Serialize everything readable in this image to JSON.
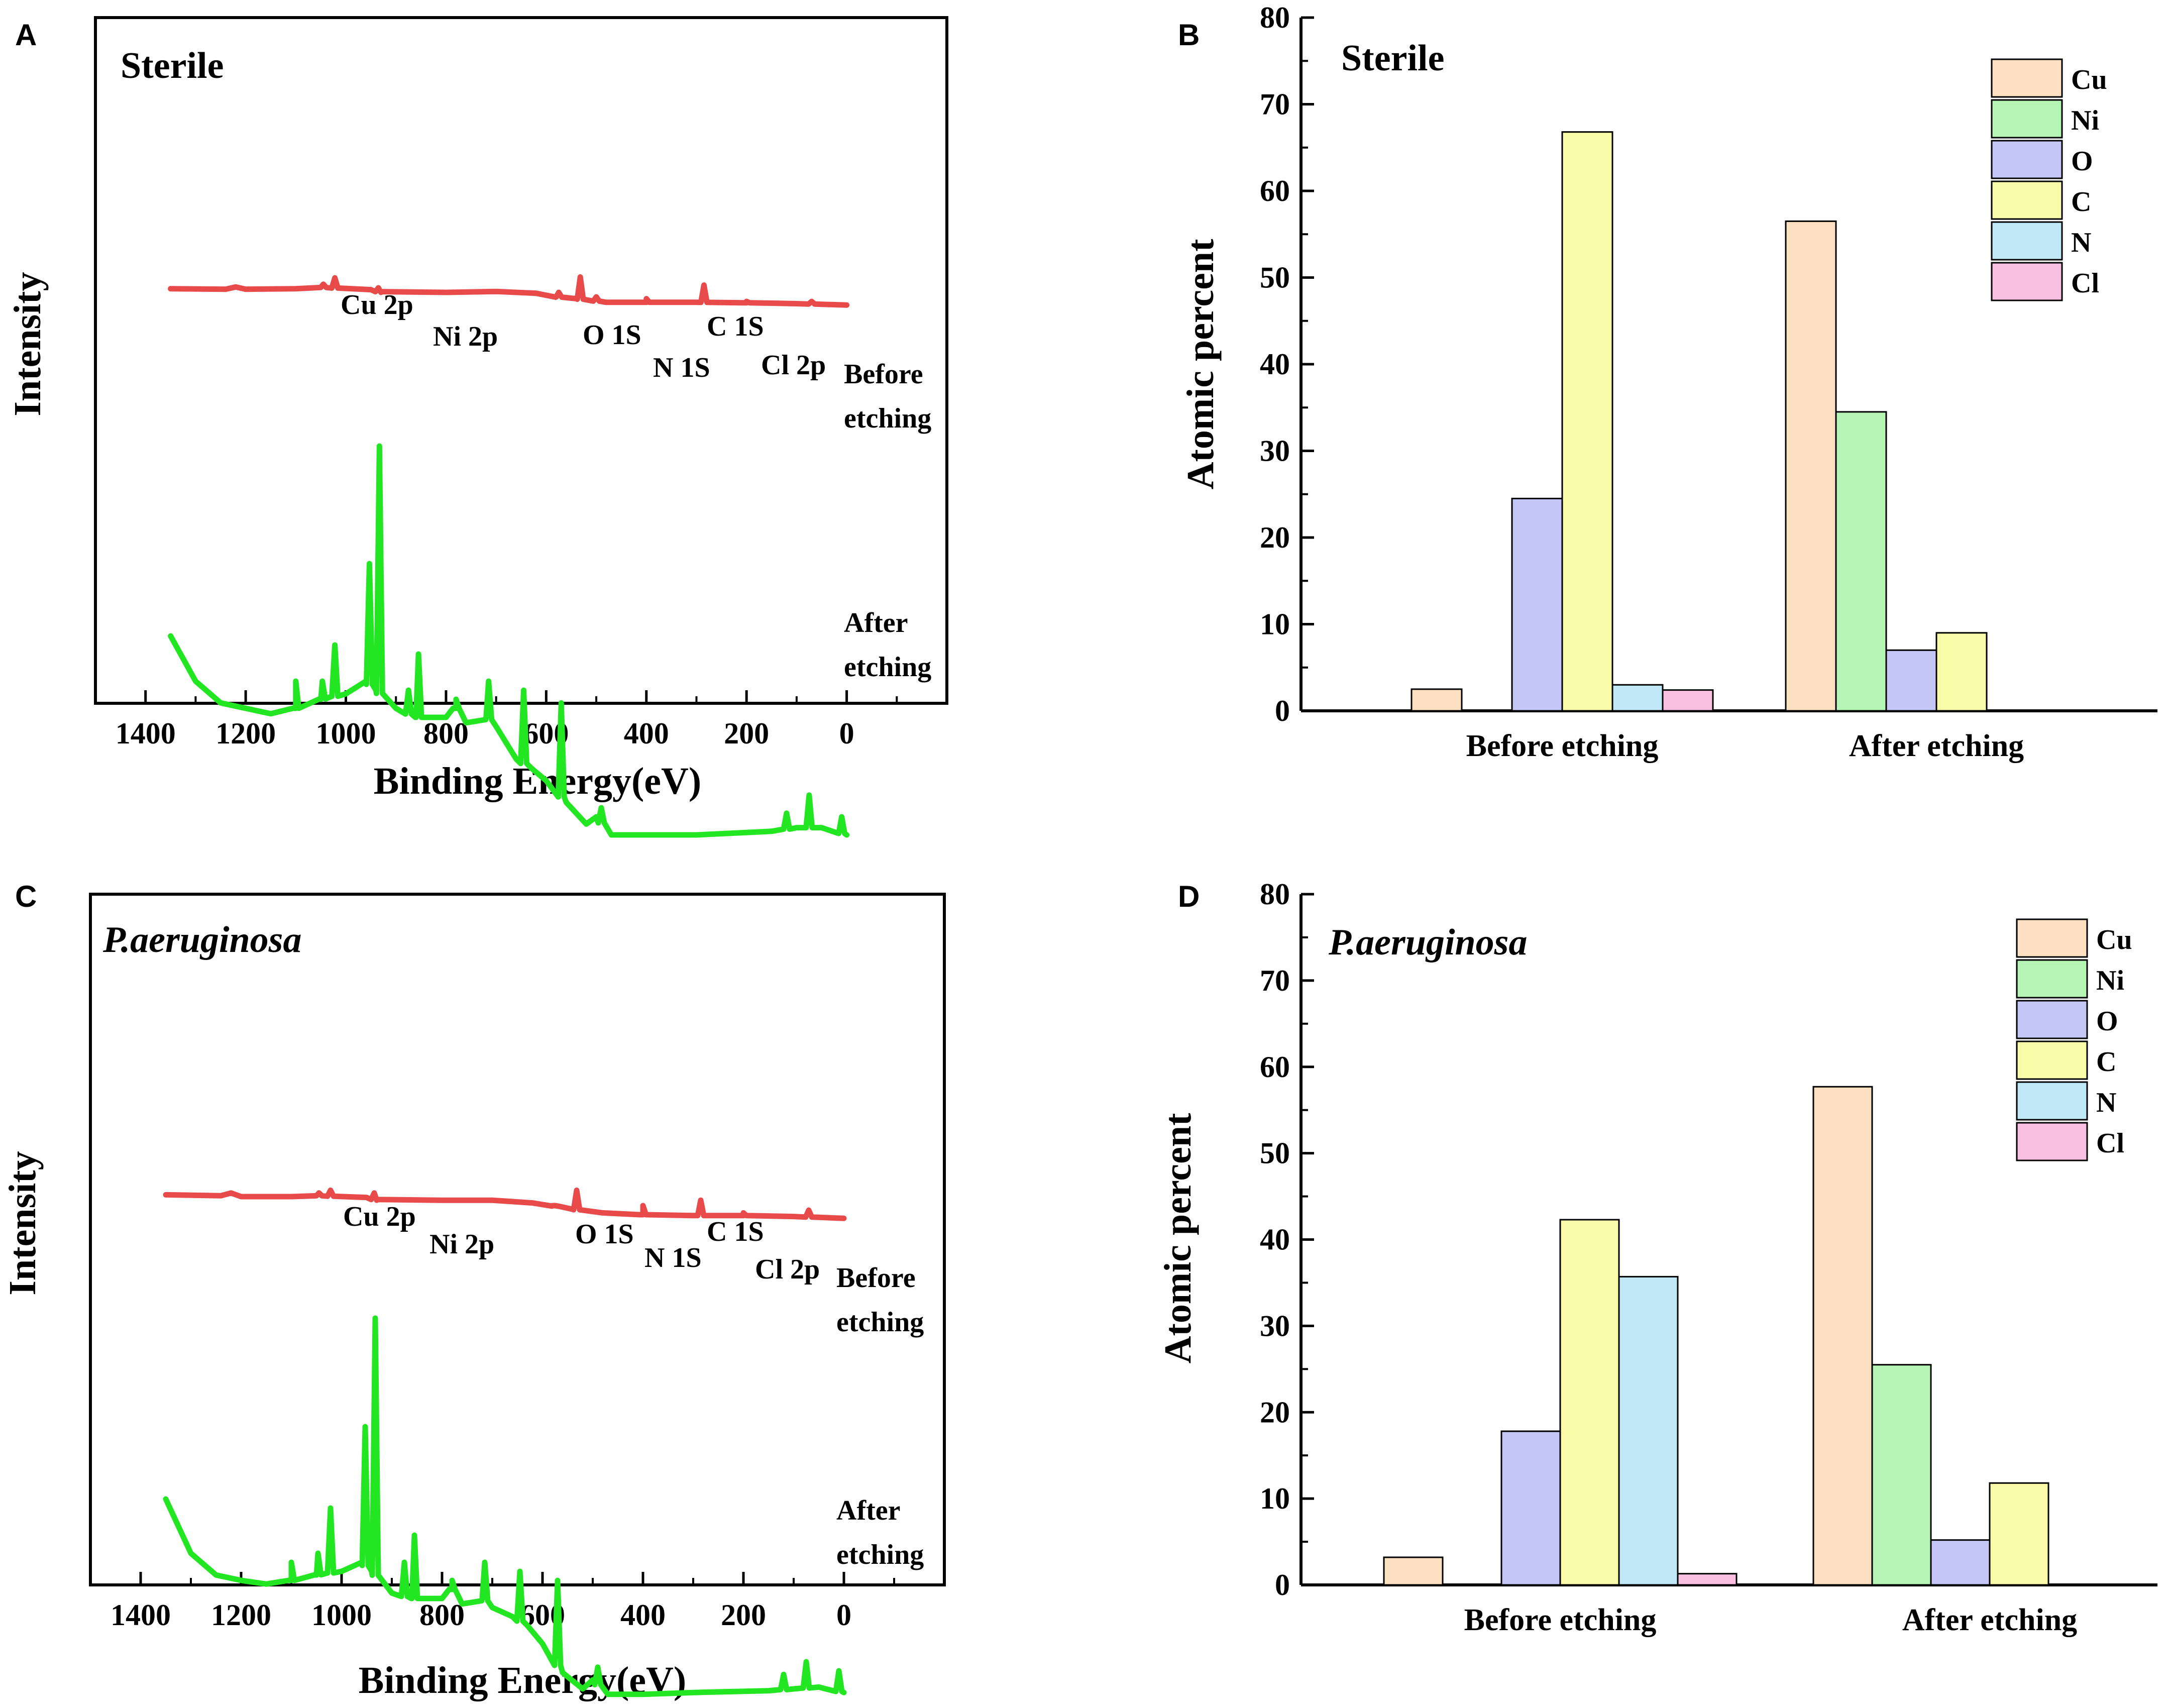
{
  "panels": {
    "A": {
      "letter": "A",
      "title": "Sterile",
      "ylabel": "Intensity",
      "xlabel": "Binding Energy(eV)",
      "xticks": [
        "1400",
        "1200",
        "1000",
        "800",
        "600",
        "400",
        "200",
        "0"
      ],
      "peaks": [
        "Cu 2p",
        "Ni 2p",
        "O 1S",
        "N 1S",
        "C 1S",
        "Cl 2p"
      ],
      "before_label": [
        "Before",
        "etching"
      ],
      "after_label": [
        "After",
        "etching"
      ],
      "before_color": "#e84a4a",
      "after_color": "#22e622"
    },
    "C": {
      "letter": "C",
      "title": "P.aeruginosa",
      "ylabel": "Intensity",
      "xlabel": "Binding Energy(eV)",
      "xticks": [
        "1400",
        "1200",
        "1000",
        "800",
        "600",
        "400",
        "200",
        "0"
      ],
      "peaks": [
        "Cu 2p",
        "Ni 2p",
        "O 1S",
        "N 1S",
        "C 1S",
        "Cl 2p"
      ],
      "before_label": [
        "Before",
        "etching"
      ],
      "after_label": [
        "After",
        "etching"
      ],
      "before_color": "#e84a4a",
      "after_color": "#22e622"
    },
    "B": {
      "letter": "B"
    },
    "D": {
      "letter": "D"
    }
  },
  "chart_data": [
    {
      "id": "A",
      "type": "line",
      "title": "Sterile",
      "xlabel": "Binding Energy(eV)",
      "ylabel": "Intensity",
      "xlim": [
        1500,
        -200
      ],
      "x_reversed": true,
      "series": [
        {
          "name": "Before etching",
          "color": "#e84a4a",
          "baseline": [
            [
              1350,
              0.64
            ],
            [
              1240,
              0.635
            ],
            [
              1220,
              0.66
            ],
            [
              1200,
              0.635
            ],
            [
              1100,
              0.64
            ],
            [
              1050,
              0.655
            ],
            [
              950,
              0.63
            ],
            [
              930,
              0.6
            ],
            [
              800,
              0.6
            ],
            [
              700,
              0.61
            ],
            [
              620,
              0.59
            ],
            [
              580,
              0.55
            ],
            [
              540,
              0.53
            ],
            [
              480,
              0.49
            ],
            [
              400,
              0.49
            ],
            [
              300,
              0.49
            ],
            [
              200,
              0.485
            ],
            [
              100,
              0.475
            ],
            [
              0,
              0.46
            ]
          ],
          "peaks": [
            [
              1045,
              0.69
            ],
            [
              1022,
              0.76
            ],
            [
              935,
              0.65
            ],
            [
              575,
              0.6
            ],
            [
              532,
              0.77
            ],
            [
              500,
              0.55
            ],
            [
              400,
              0.53
            ],
            [
              285,
              0.68
            ],
            [
              200,
              0.5
            ],
            [
              70,
              0.5
            ]
          ]
        },
        {
          "name": "After etching",
          "color": "#22e622",
          "baseline": [
            [
              1350,
              -0.6
            ],
            [
              1300,
              -0.85
            ],
            [
              1250,
              -0.97
            ],
            [
              1200,
              -1.0
            ],
            [
              1150,
              -1.03
            ],
            [
              1100,
              -1.0
            ],
            [
              1050,
              -0.95
            ],
            [
              1000,
              -0.92
            ],
            [
              960,
              -0.85
            ],
            [
              940,
              -0.9
            ],
            [
              900,
              -1.0
            ],
            [
              860,
              -1.05
            ],
            [
              800,
              -1.05
            ],
            [
              780,
              -1.0
            ],
            [
              760,
              -1.08
            ],
            [
              720,
              -1.05
            ],
            [
              700,
              -1.1
            ],
            [
              660,
              -1.28
            ],
            [
              630,
              -1.33
            ],
            [
              600,
              -1.4
            ],
            [
              560,
              -1.52
            ],
            [
              520,
              -1.64
            ],
            [
              500,
              -1.6
            ],
            [
              470,
              -1.7
            ],
            [
              400,
              -1.7
            ],
            [
              300,
              -1.7
            ],
            [
              150,
              -1.68
            ],
            [
              100,
              -1.66
            ],
            [
              50,
              -1.66
            ],
            [
              0,
              -1.7
            ]
          ],
          "peaks": [
            [
              1100,
              -0.85
            ],
            [
              1047,
              -0.85
            ],
            [
              1022,
              -0.65
            ],
            [
              953,
              -0.2
            ],
            [
              933,
              0.45
            ],
            [
              875,
              -0.9
            ],
            [
              855,
              -0.7
            ],
            [
              780,
              -0.95
            ],
            [
              715,
              -0.85
            ],
            [
              645,
              -0.9
            ],
            [
              570,
              -0.97
            ],
            [
              490,
              -1.55
            ],
            [
              120,
              -1.58
            ],
            [
              75,
              -1.48
            ],
            [
              10,
              -1.6
            ]
          ]
        }
      ],
      "annotations": [
        "Cu 2p",
        "Ni 2p",
        "O 1S",
        "N 1S",
        "C 1S",
        "Cl 2p",
        "Before etching",
        "After etching"
      ]
    },
    {
      "id": "B",
      "type": "bar",
      "title": "Sterile",
      "xlabel": "",
      "ylabel": "Atomic percent",
      "ylim": [
        0,
        80
      ],
      "yticks": [
        0,
        10,
        20,
        30,
        40,
        50,
        60,
        70,
        80
      ],
      "categories": [
        "Before etching",
        "After etching"
      ],
      "series": [
        {
          "name": "Cu",
          "color": "#fde0c2",
          "values": [
            2.5,
            56.5
          ]
        },
        {
          "name": "Ni",
          "color": "#b5f5b5",
          "values": [
            0,
            34.5
          ]
        },
        {
          "name": "O",
          "color": "#c4c6f5",
          "values": [
            24.5,
            7.0
          ]
        },
        {
          "name": "C",
          "color": "#fafba8",
          "values": [
            66.8,
            9.0
          ]
        },
        {
          "name": "N",
          "color": "#c0e8f7",
          "values": [
            3.0,
            0
          ]
        },
        {
          "name": "Cl",
          "color": "#f8bfe0",
          "values": [
            2.4,
            0
          ]
        }
      ],
      "legend": "top-right"
    },
    {
      "id": "C",
      "type": "line",
      "title": "P.aeruginosa",
      "xlabel": "Binding Energy(eV)",
      "ylabel": "Intensity",
      "xlim": [
        1500,
        -200
      ],
      "x_reversed": true,
      "series": [
        {
          "name": "Before etching",
          "color": "#e84a4a",
          "baseline": [
            [
              1350,
              0.62
            ],
            [
              1240,
              0.61
            ],
            [
              1220,
              0.64
            ],
            [
              1200,
              0.6
            ],
            [
              1100,
              0.6
            ],
            [
              1050,
              0.61
            ],
            [
              950,
              0.59
            ],
            [
              930,
              0.56
            ],
            [
              800,
              0.56
            ],
            [
              700,
              0.56
            ],
            [
              620,
              0.53
            ],
            [
              580,
              0.5
            ],
            [
              540,
              0.46
            ],
            [
              480,
              0.42
            ],
            [
              400,
              0.4
            ],
            [
              300,
              0.39
            ],
            [
              200,
              0.39
            ],
            [
              100,
              0.38
            ],
            [
              0,
              0.36
            ]
          ],
          "peaks": [
            [
              1045,
              0.64
            ],
            [
              1022,
              0.67
            ],
            [
              935,
              0.64
            ],
            [
              575,
              0.5
            ],
            [
              532,
              0.67
            ],
            [
              400,
              0.5
            ],
            [
              285,
              0.56
            ],
            [
              200,
              0.42
            ],
            [
              70,
              0.45
            ]
          ]
        },
        {
          "name": "After etching",
          "color": "#22e622",
          "baseline": [
            [
              1350,
              -0.4
            ],
            [
              1300,
              -0.7
            ],
            [
              1250,
              -0.82
            ],
            [
              1200,
              -0.85
            ],
            [
              1150,
              -0.87
            ],
            [
              1100,
              -0.85
            ],
            [
              1050,
              -0.82
            ],
            [
              1000,
              -0.8
            ],
            [
              960,
              -0.75
            ],
            [
              940,
              -0.8
            ],
            [
              900,
              -0.92
            ],
            [
              860,
              -0.95
            ],
            [
              800,
              -0.95
            ],
            [
              780,
              -0.9
            ],
            [
              760,
              -0.98
            ],
            [
              720,
              -0.95
            ],
            [
              700,
              -1.0
            ],
            [
              660,
              -1.05
            ],
            [
              630,
              -1.1
            ],
            [
              600,
              -1.2
            ],
            [
              560,
              -1.36
            ],
            [
              520,
              -1.45
            ],
            [
              500,
              -1.4
            ],
            [
              470,
              -1.48
            ],
            [
              400,
              -1.48
            ],
            [
              300,
              -1.47
            ],
            [
              150,
              -1.46
            ],
            [
              100,
              -1.45
            ],
            [
              50,
              -1.44
            ],
            [
              0,
              -1.47
            ]
          ],
          "peaks": [
            [
              1100,
              -0.75
            ],
            [
              1047,
              -0.7
            ],
            [
              1022,
              -0.45
            ],
            [
              953,
              0.0
            ],
            [
              933,
              0.6
            ],
            [
              875,
              -0.75
            ],
            [
              855,
              -0.6
            ],
            [
              780,
              -0.85
            ],
            [
              715,
              -0.75
            ],
            [
              645,
              -0.8
            ],
            [
              570,
              -0.85
            ],
            [
              490,
              -1.33
            ],
            [
              120,
              -1.37
            ],
            [
              75,
              -1.3
            ],
            [
              10,
              -1.35
            ]
          ]
        }
      ],
      "annotations": [
        "Cu 2p",
        "Ni 2p",
        "O 1S",
        "N 1S",
        "C 1S",
        "Cl 2p",
        "Before etching",
        "After etching"
      ]
    },
    {
      "id": "D",
      "type": "bar",
      "title": "P.aeruginosa",
      "xlabel": "",
      "ylabel": "Atomic percent",
      "ylim": [
        0,
        80
      ],
      "yticks": [
        0,
        10,
        20,
        30,
        40,
        50,
        60,
        70,
        80
      ],
      "categories": [
        "Before etching",
        "After etching"
      ],
      "series": [
        {
          "name": "Cu",
          "color": "#fde0c2",
          "values": [
            3.2,
            57.7
          ]
        },
        {
          "name": "Ni",
          "color": "#b5f5b5",
          "values": [
            0,
            25.5
          ]
        },
        {
          "name": "O",
          "color": "#c4c6f5",
          "values": [
            17.8,
            5.2
          ]
        },
        {
          "name": "C",
          "color": "#fafba8",
          "values": [
            42.3,
            11.8
          ]
        },
        {
          "name": "N",
          "color": "#c0e8f7",
          "values": [
            35.7,
            0
          ]
        },
        {
          "name": "Cl",
          "color": "#f8bfe0",
          "values": [
            1.3,
            0
          ]
        }
      ],
      "legend": "top-right"
    }
  ]
}
